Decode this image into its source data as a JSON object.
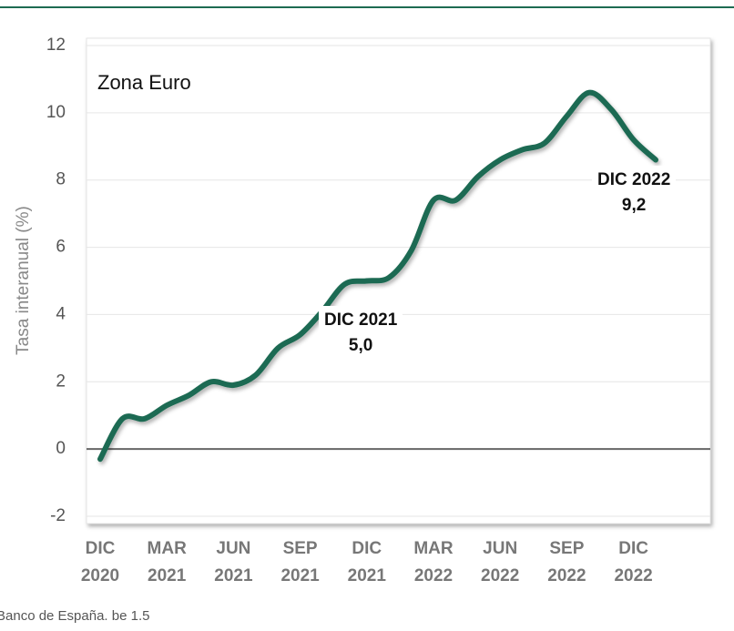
{
  "chart_data": {
    "type": "line",
    "panel_label": "Zona Euro",
    "ylabel": "Tasa interanual (%)",
    "source": "Banco de España. be 1.5",
    "categories": [
      "DIC 2020",
      null,
      null,
      "MAR 2021",
      null,
      null,
      "JUN 2021",
      null,
      null,
      "SEP 2021",
      null,
      null,
      "DIC 2021",
      null,
      null,
      "MAR 2022",
      null,
      null,
      "JUN 2022",
      null,
      null,
      "SEP 2022",
      null,
      null,
      "DIC 2022",
      null
    ],
    "series": [
      {
        "name": "Zona Euro",
        "color": "#1e6b52",
        "values": [
          -0.3,
          0.9,
          0.9,
          1.3,
          1.6,
          2.0,
          1.9,
          2.2,
          3.0,
          3.4,
          4.1,
          4.9,
          5.0,
          5.1,
          5.9,
          7.4,
          7.4,
          8.1,
          8.6,
          8.9,
          9.1,
          9.9,
          10.6,
          10.1,
          9.2,
          8.6
        ]
      }
    ],
    "annotations": [
      {
        "label": "DIC 2021",
        "value_label": "5,0"
      },
      {
        "label": "DIC 2022",
        "value_label": "9,2"
      }
    ],
    "ylim": [
      -2,
      12
    ],
    "yticks": [
      -2,
      0,
      2,
      4,
      6,
      8,
      10,
      12
    ],
    "grid": true
  }
}
